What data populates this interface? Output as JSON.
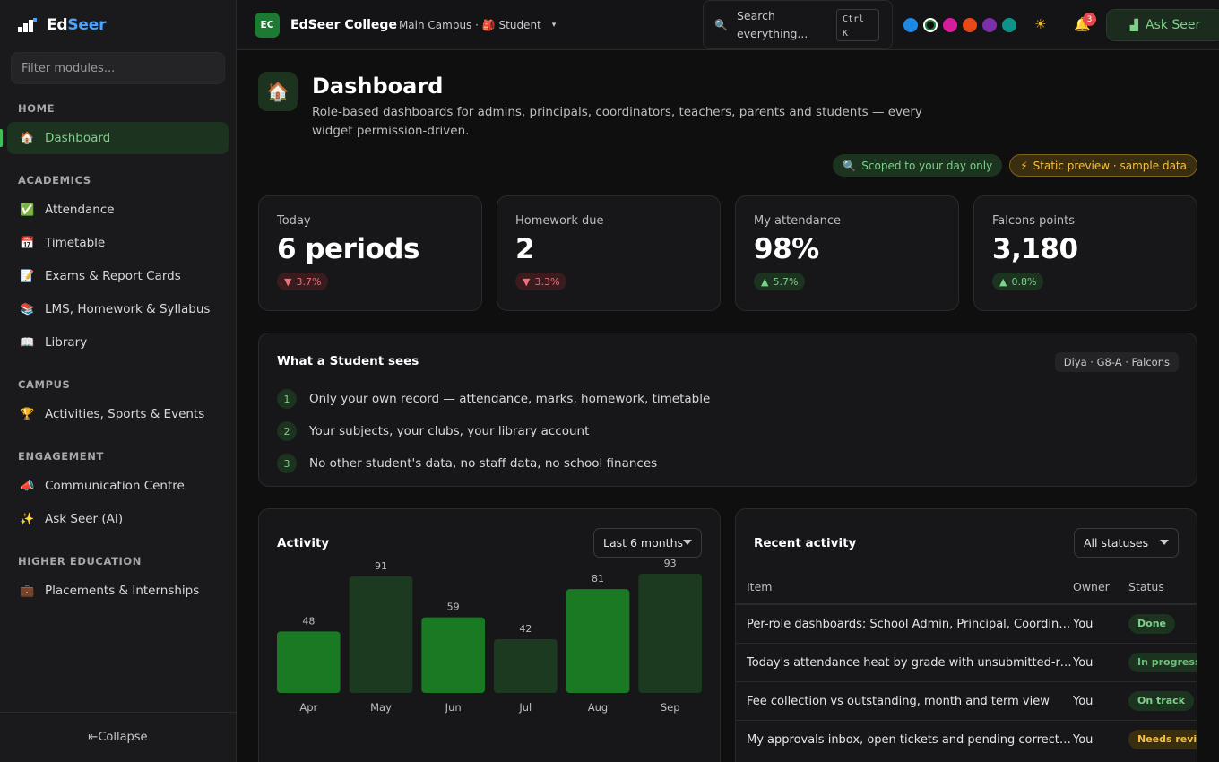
{
  "brand": {
    "name_a": "Ed",
    "name_b": "Seer"
  },
  "sidebar": {
    "filter_placeholder": "Filter modules...",
    "sections": [
      {
        "title": "HOME",
        "items": [
          {
            "label": "Dashboard",
            "icon": "house-icon",
            "glyph": "🏠",
            "active": true
          }
        ]
      },
      {
        "title": "ACADEMICS",
        "items": [
          {
            "label": "Attendance",
            "icon": "check-box-icon",
            "glyph": "✅"
          },
          {
            "label": "Timetable",
            "icon": "calendar-icon",
            "glyph": "📅"
          },
          {
            "label": "Exams & Report Cards",
            "icon": "report-icon",
            "glyph": "📝"
          },
          {
            "label": "LMS, Homework & Syllabus",
            "icon": "books-icon",
            "glyph": "📚"
          },
          {
            "label": "Library",
            "icon": "book-icon",
            "glyph": "📖"
          }
        ]
      },
      {
        "title": "CAMPUS",
        "items": [
          {
            "label": "Activities, Sports & Events",
            "icon": "trophy-icon",
            "glyph": "🏆"
          }
        ]
      },
      {
        "title": "ENGAGEMENT",
        "items": [
          {
            "label": "Communication Centre",
            "icon": "megaphone-icon",
            "glyph": "📣"
          },
          {
            "label": "Ask Seer (AI)",
            "icon": "sparkles-icon",
            "glyph": "✨"
          }
        ]
      },
      {
        "title": "HIGHER EDUCATION",
        "items": [
          {
            "label": "Placements & Internships",
            "icon": "briefcase-icon",
            "glyph": "💼"
          }
        ]
      }
    ],
    "collapse_label": "⇤Collapse"
  },
  "topbar": {
    "org_initials": "EC",
    "org_name": "EdSeer College",
    "org_sub": "Main Campus · 🎒 Student",
    "search_label": "Search everything...",
    "search_kbd": "Ctrl K",
    "theme_colors": [
      "#1e88e5",
      "#0f0f10",
      "#d81b9c",
      "#e64a19",
      "#7b2fa8",
      "#0d9488"
    ],
    "notifications_count": "3",
    "ask_label": "Ask Seer"
  },
  "page": {
    "title": "Dashboard",
    "subtitle": "Role-based dashboards for admins, principals, coordinators, teachers, parents and students — every widget permission-driven.",
    "pill_scope": "Scoped to your day only",
    "pill_preview": "Static preview · sample data"
  },
  "stats": [
    {
      "label": "Today",
      "value": "6 periods",
      "delta": "3.7%",
      "dir": "down"
    },
    {
      "label": "Homework due",
      "value": "2",
      "delta": "3.3%",
      "dir": "down"
    },
    {
      "label": "My attendance",
      "value": "98%",
      "delta": "5.7%",
      "dir": "up"
    },
    {
      "label": "Falcons points",
      "value": "3,180",
      "delta": "0.8%",
      "dir": "up"
    }
  ],
  "sees": {
    "title": "What a Student sees",
    "tag": "Diya · G8-A · Falcons",
    "items": [
      "Only your own record — attendance, marks, homework, timetable",
      "Your subjects, your clubs, your library account",
      "No other student's data, no staff data, no school finances"
    ]
  },
  "activity": {
    "title": "Activity",
    "range": "Last 6 months"
  },
  "chart_data": {
    "type": "bar",
    "categories": [
      "Apr",
      "May",
      "Jun",
      "Jul",
      "Aug",
      "Sep"
    ],
    "values": [
      48,
      91,
      59,
      42,
      81,
      93
    ],
    "highlight": [
      true,
      false,
      true,
      false,
      true,
      false
    ],
    "colors": {
      "bright": "#1a7a23",
      "dim": "#1b3a1f"
    },
    "ylim": [
      0,
      100
    ]
  },
  "recent": {
    "title": "Recent activity",
    "filter": "All statuses",
    "headers": [
      "Item",
      "Owner",
      "Status"
    ],
    "rows": [
      {
        "item": "Per-role dashboards: School Admin, Principal, Coordinator, Teacher, Parent, Student",
        "owner": "You",
        "status": "Done",
        "kind": "done"
      },
      {
        "item": "Today's attendance heat by grade with unsubmitted-register alerts",
        "owner": "You",
        "status": "In progress",
        "kind": "prog"
      },
      {
        "item": "Fee collection vs outstanding, month and term view",
        "owner": "You",
        "status": "On track",
        "kind": "track"
      },
      {
        "item": "My approvals inbox, open tickets and pending corrections",
        "owner": "You",
        "status": "Needs review",
        "kind": "rev"
      }
    ]
  }
}
